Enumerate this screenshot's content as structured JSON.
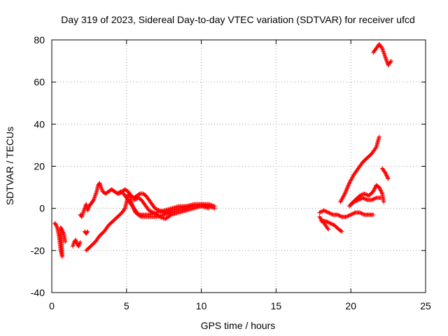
{
  "chart_data": {
    "type": "scatter",
    "title": "Day 319 of 2023, Sidereal Day-to-day VTEC variation (SDTVAR) for receiver ufcd",
    "xlabel": "GPS time / hours",
    "ylabel": "SDTVAR / TECUs",
    "xlim": [
      0,
      25
    ],
    "ylim": [
      -40,
      80
    ],
    "xticks": [
      "0",
      "5",
      "10",
      "15",
      "20",
      "25"
    ],
    "yticks": [
      "-40",
      "-20",
      "0",
      "20",
      "40",
      "60",
      "80"
    ],
    "grid": true,
    "marker": "+",
    "color": "#ff0000",
    "series": [
      {
        "name": "s1",
        "points": [
          [
            0.2,
            -7
          ],
          [
            0.3,
            -8
          ],
          [
            0.4,
            -10
          ],
          [
            0.5,
            -14
          ],
          [
            0.6,
            -20
          ],
          [
            0.7,
            -23
          ],
          [
            0.6,
            -9
          ],
          [
            0.8,
            -12
          ],
          [
            0.9,
            -16
          ]
        ]
      },
      {
        "name": "s2",
        "points": [
          [
            1.4,
            -18
          ],
          [
            1.5,
            -16
          ],
          [
            1.6,
            -15
          ],
          [
            1.7,
            -17
          ],
          [
            1.8,
            -18
          ],
          [
            1.9,
            -16
          ]
        ]
      },
      {
        "name": "s3",
        "points": [
          [
            1.9,
            -3
          ],
          [
            2.0,
            -4
          ],
          [
            2.1,
            -2
          ],
          [
            2.2,
            0
          ],
          [
            2.3,
            2
          ],
          [
            2.4,
            -1
          ],
          [
            2.5,
            1
          ],
          [
            2.6,
            2
          ],
          [
            2.7,
            3
          ],
          [
            2.8,
            4
          ],
          [
            2.9,
            6
          ],
          [
            3.0,
            8
          ],
          [
            3.1,
            11
          ],
          [
            3.2,
            12
          ],
          [
            3.3,
            10
          ],
          [
            3.4,
            8
          ],
          [
            3.6,
            7
          ],
          [
            3.8,
            8
          ],
          [
            4.0,
            9
          ],
          [
            4.2,
            8
          ],
          [
            4.4,
            7
          ],
          [
            4.6,
            8
          ],
          [
            4.8,
            7
          ],
          [
            5.0,
            5
          ],
          [
            5.2,
            3
          ],
          [
            5.4,
            1
          ],
          [
            5.6,
            -1
          ],
          [
            5.8,
            -3
          ],
          [
            6.0,
            -4
          ],
          [
            6.5,
            -4
          ],
          [
            7.0,
            -4
          ],
          [
            7.5,
            -3
          ],
          [
            8.0,
            -2
          ],
          [
            8.5,
            -1
          ],
          [
            9.0,
            0
          ],
          [
            9.5,
            1
          ],
          [
            10.0,
            1
          ],
          [
            10.5,
            1
          ],
          [
            10.9,
            0
          ]
        ]
      },
      {
        "name": "s4",
        "points": [
          [
            2.2,
            -11
          ],
          [
            2.3,
            -12
          ],
          [
            2.4,
            -11
          ]
        ]
      },
      {
        "name": "s5",
        "points": [
          [
            2.3,
            -20
          ],
          [
            2.6,
            -18
          ],
          [
            2.9,
            -16
          ],
          [
            3.2,
            -13
          ],
          [
            3.5,
            -11
          ],
          [
            3.8,
            -8
          ],
          [
            4.1,
            -6
          ],
          [
            4.4,
            -4
          ],
          [
            4.7,
            -2
          ],
          [
            4.9,
            0
          ],
          [
            5.0,
            3
          ],
          [
            5.1,
            6
          ],
          [
            5.2,
            7
          ],
          [
            5.3,
            4
          ],
          [
            5.4,
            1
          ],
          [
            5.6,
            -2
          ],
          [
            5.8,
            -3
          ],
          [
            6.1,
            -3
          ],
          [
            6.5,
            -3
          ],
          [
            7.0,
            -2
          ],
          [
            7.5,
            -1
          ],
          [
            8.0,
            0
          ],
          [
            8.5,
            1
          ],
          [
            9.0,
            1
          ],
          [
            9.5,
            2
          ],
          [
            10.0,
            2
          ],
          [
            10.5,
            2
          ],
          [
            10.9,
            1
          ]
        ]
      },
      {
        "name": "s6",
        "points": [
          [
            4.5,
            7
          ],
          [
            4.7,
            8
          ],
          [
            4.9,
            9
          ],
          [
            5.1,
            8
          ],
          [
            5.3,
            6
          ],
          [
            5.5,
            5
          ],
          [
            5.7,
            6
          ],
          [
            5.9,
            7
          ],
          [
            6.1,
            7
          ],
          [
            6.3,
            6
          ],
          [
            6.5,
            4
          ],
          [
            6.7,
            2
          ],
          [
            6.9,
            0
          ],
          [
            7.2,
            -1
          ],
          [
            7.6,
            -2
          ],
          [
            8.0,
            -1
          ],
          [
            8.5,
            0
          ],
          [
            9.0,
            1
          ],
          [
            9.5,
            1
          ],
          [
            10.0,
            2
          ],
          [
            10.5,
            1
          ]
        ]
      },
      {
        "name": "s7",
        "points": [
          [
            5.5,
            4
          ],
          [
            5.8,
            5
          ],
          [
            6.0,
            4
          ],
          [
            6.2,
            2
          ],
          [
            6.5,
            -1
          ],
          [
            6.8,
            -2
          ],
          [
            7.2,
            -4
          ],
          [
            7.6,
            -5
          ],
          [
            8.0,
            -3
          ],
          [
            8.5,
            -2
          ],
          [
            9.0,
            -1
          ],
          [
            9.5,
            0
          ],
          [
            10.0,
            1
          ],
          [
            10.5,
            0
          ]
        ]
      },
      {
        "name": "s8",
        "points": [
          [
            17.9,
            -2
          ],
          [
            18.2,
            -1
          ],
          [
            18.5,
            -2
          ],
          [
            18.8,
            -3
          ],
          [
            19.1,
            -3
          ],
          [
            19.4,
            -4
          ],
          [
            19.7,
            -4
          ],
          [
            20.0,
            -3
          ],
          [
            20.3,
            -2
          ],
          [
            20.6,
            -2
          ],
          [
            20.9,
            -3
          ],
          [
            21.2,
            -3
          ],
          [
            21.5,
            -3
          ]
        ]
      },
      {
        "name": "s9",
        "points": [
          [
            17.9,
            -4
          ],
          [
            18.2,
            -7
          ],
          [
            18.5,
            -10
          ]
        ]
      },
      {
        "name": "s10",
        "points": [
          [
            18.0,
            -6
          ],
          [
            18.3,
            -6
          ],
          [
            18.6,
            -7
          ],
          [
            18.9,
            -8
          ],
          [
            19.2,
            -10
          ],
          [
            19.4,
            -11
          ]
        ]
      },
      {
        "name": "s11",
        "points": [
          [
            19.3,
            3
          ],
          [
            19.6,
            7
          ],
          [
            19.9,
            12
          ],
          [
            20.2,
            16
          ],
          [
            20.5,
            19
          ],
          [
            20.8,
            22
          ],
          [
            21.1,
            24
          ],
          [
            21.4,
            26
          ],
          [
            21.7,
            29
          ],
          [
            21.9,
            34
          ]
        ]
      },
      {
        "name": "s12",
        "points": [
          [
            20.0,
            2
          ],
          [
            20.3,
            4
          ],
          [
            20.6,
            6
          ],
          [
            20.9,
            7
          ],
          [
            21.2,
            6
          ],
          [
            21.5,
            8
          ],
          [
            21.7,
            11
          ],
          [
            21.9,
            10
          ],
          [
            22.1,
            7
          ],
          [
            22.2,
            3
          ]
        ]
      },
      {
        "name": "s13",
        "points": [
          [
            19.9,
            1
          ],
          [
            20.2,
            3
          ],
          [
            20.5,
            4
          ],
          [
            20.8,
            5
          ],
          [
            21.1,
            4
          ],
          [
            21.4,
            4
          ],
          [
            21.7,
            5
          ],
          [
            22.0,
            5
          ]
        ]
      },
      {
        "name": "s14",
        "points": [
          [
            22.1,
            19
          ],
          [
            22.3,
            17
          ],
          [
            22.5,
            14
          ]
        ]
      },
      {
        "name": "s15",
        "points": [
          [
            21.5,
            74
          ],
          [
            21.7,
            76
          ],
          [
            21.9,
            78
          ],
          [
            22.1,
            76
          ],
          [
            22.3,
            72
          ],
          [
            22.5,
            68
          ],
          [
            22.7,
            70
          ]
        ]
      }
    ]
  }
}
